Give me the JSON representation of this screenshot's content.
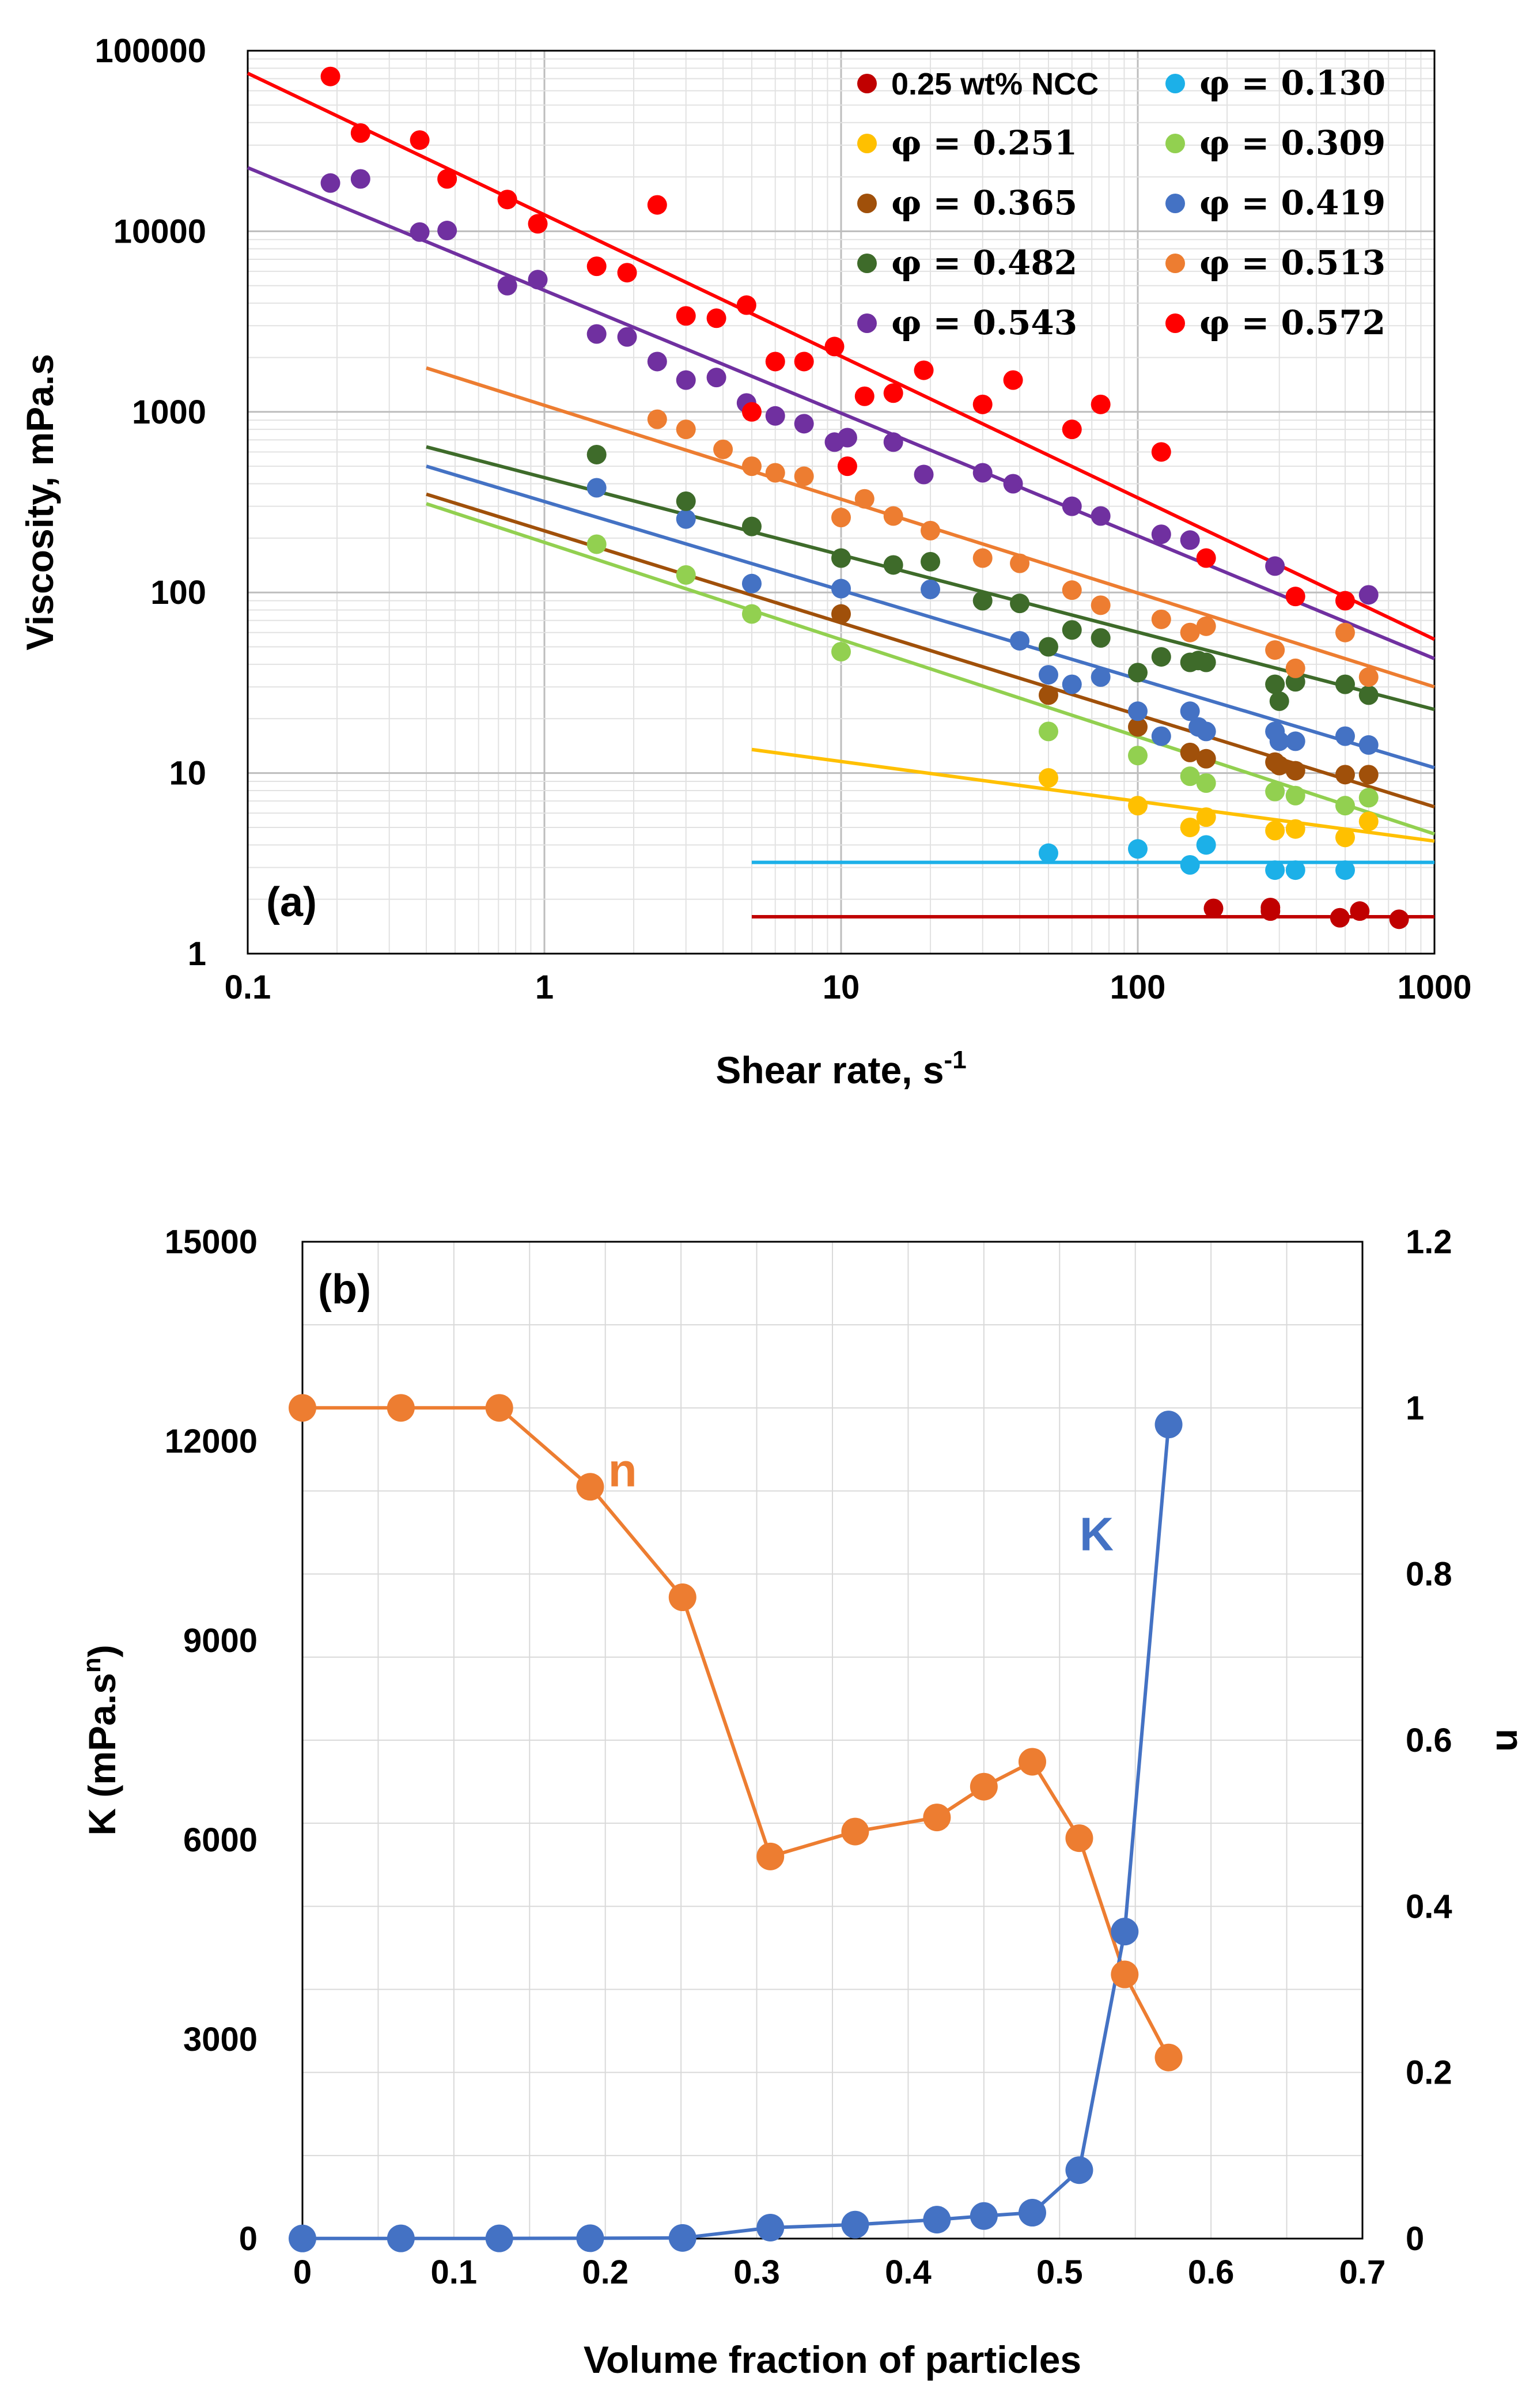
{
  "chart_data": [
    {
      "panel_label": "(a)",
      "type": "scatter",
      "xlabel": "Shear rate, s",
      "xlabel_superscript": "-1",
      "ylabel": "Viscosity, mPa.s",
      "xscale": "log",
      "yscale": "log",
      "xlim": [
        0.1,
        1000
      ],
      "ylim": [
        1,
        100000
      ],
      "grid": true,
      "legend_position": "top-right",
      "x_ticks": [
        "0.1",
        "1",
        "10",
        "100",
        "1000"
      ],
      "y_ticks": [
        "1",
        "10",
        "100",
        "1000",
        "10000",
        "100000"
      ],
      "series": [
        {
          "name": "0.25 wt% NCC",
          "color": "#C00000",
          "points": [
            [
              180,
              1.78
            ],
            [
              280,
              1.72
            ],
            [
              280,
              1.8
            ],
            [
              480,
              1.58
            ],
            [
              560,
              1.72
            ],
            [
              760,
              1.55
            ]
          ],
          "fit": [
            [
              5,
              1.6
            ],
            [
              1000,
              1.6
            ]
          ]
        },
        {
          "name": "φ = 0.130",
          "color": "#1CB0E8",
          "points": [
            [
              50,
              3.6
            ],
            [
              100,
              3.8
            ],
            [
              150,
              3.1
            ],
            [
              170,
              4.0
            ],
            [
              290,
              2.9
            ],
            [
              340,
              2.9
            ],
            [
              500,
              2.9
            ]
          ],
          "fit": [
            [
              5,
              3.2
            ],
            [
              1000,
              3.2
            ]
          ]
        },
        {
          "name": "φ = 0.251",
          "color": "#FFC000",
          "points": [
            [
              50,
              9.4
            ],
            [
              100,
              6.6
            ],
            [
              150,
              5.0
            ],
            [
              170,
              5.7
            ],
            [
              290,
              4.8
            ],
            [
              340,
              4.9
            ],
            [
              500,
              4.4
            ],
            [
              600,
              5.4
            ]
          ],
          "fit": [
            [
              5,
              13.5
            ],
            [
              1000,
              4.2
            ]
          ]
        },
        {
          "name": "φ = 0.309",
          "color": "#92D050",
          "points": [
            [
              1.5,
              185
            ],
            [
              3.0,
              125
            ],
            [
              5.0,
              76
            ],
            [
              10,
              47
            ],
            [
              50,
              17
            ],
            [
              100,
              12.5
            ],
            [
              150,
              9.6
            ],
            [
              170,
              8.8
            ],
            [
              290,
              7.9
            ],
            [
              340,
              7.5
            ],
            [
              500,
              6.6
            ],
            [
              600,
              7.3
            ]
          ],
          "fit": [
            [
              0.4,
              310
            ],
            [
              1000,
              4.6
            ]
          ]
        },
        {
          "name": "φ = 0.365",
          "color": "#A0500A",
          "points": [
            [
              10,
              76
            ],
            [
              50,
              27
            ],
            [
              100,
              18
            ],
            [
              150,
              13
            ],
            [
              170,
              12
            ],
            [
              290,
              11.5
            ],
            [
              300,
              11
            ],
            [
              340,
              10.3
            ],
            [
              500,
              9.8
            ],
            [
              600,
              9.8
            ]
          ],
          "fit": [
            [
              0.4,
              350
            ],
            [
              1000,
              6.5
            ]
          ]
        },
        {
          "name": "φ = 0.419",
          "color": "#4472C4",
          "points": [
            [
              1.5,
              380
            ],
            [
              3.0,
              255
            ],
            [
              5.0,
              112
            ],
            [
              10,
              105
            ],
            [
              20,
              104
            ],
            [
              40,
              54
            ],
            [
              50,
              35
            ],
            [
              60,
              31
            ],
            [
              75,
              34
            ],
            [
              100,
              22
            ],
            [
              120,
              16
            ],
            [
              150,
              22
            ],
            [
              160,
              18
            ],
            [
              170,
              17
            ],
            [
              290,
              17
            ],
            [
              300,
              15
            ],
            [
              340,
              15
            ],
            [
              500,
              16
            ],
            [
              600,
              14.3
            ]
          ],
          "fit": [
            [
              0.4,
              500
            ],
            [
              1000,
              10.7
            ]
          ]
        },
        {
          "name": "φ = 0.482",
          "color": "#3E6B2A",
          "points": [
            [
              1.5,
              580
            ],
            [
              3.0,
              320
            ],
            [
              5.0,
              232
            ],
            [
              10,
              155
            ],
            [
              15,
              142
            ],
            [
              20,
              148
            ],
            [
              30,
              90
            ],
            [
              40,
              87
            ],
            [
              50,
              50
            ],
            [
              60,
              62
            ],
            [
              75,
              56
            ],
            [
              100,
              36
            ],
            [
              120,
              44
            ],
            [
              150,
              41
            ],
            [
              160,
              42
            ],
            [
              170,
              41
            ],
            [
              290,
              31
            ],
            [
              300,
              25
            ],
            [
              340,
              32
            ],
            [
              500,
              31
            ],
            [
              600,
              27
            ]
          ],
          "fit": [
            [
              0.4,
              640
            ],
            [
              1000,
              22.5
            ]
          ]
        },
        {
          "name": "φ = 0.513",
          "color": "#ED7D31",
          "points": [
            [
              2.4,
              910
            ],
            [
              3.0,
              800
            ],
            [
              4.0,
              620
            ],
            [
              5.0,
              500
            ],
            [
              6.0,
              460
            ],
            [
              7.5,
              440
            ],
            [
              10,
              260
            ],
            [
              12,
              330
            ],
            [
              15,
              265
            ],
            [
              20,
              220
            ],
            [
              30,
              155
            ],
            [
              40,
              145
            ],
            [
              60,
              103
            ],
            [
              75,
              85
            ],
            [
              120,
              71
            ],
            [
              150,
              60
            ],
            [
              170,
              65
            ],
            [
              290,
              48
            ],
            [
              340,
              38
            ],
            [
              500,
              60
            ],
            [
              600,
              34
            ]
          ],
          "fit": [
            [
              0.4,
              1750
            ],
            [
              1000,
              30
            ]
          ]
        },
        {
          "name": "φ = 0.543",
          "color": "#7030A0",
          "points": [
            [
              0.19,
              18500
            ],
            [
              0.24,
              19500
            ],
            [
              0.38,
              9900
            ],
            [
              0.47,
              10100
            ],
            [
              0.75,
              5000
            ],
            [
              0.95,
              5400
            ],
            [
              1.5,
              2700
            ],
            [
              1.9,
              2600
            ],
            [
              2.4,
              1900
            ],
            [
              3.0,
              1500
            ],
            [
              3.8,
              1550
            ],
            [
              4.8,
              1120
            ],
            [
              6.0,
              950
            ],
            [
              7.5,
              860
            ],
            [
              9.5,
              680
            ],
            [
              10.5,
              720
            ],
            [
              15,
              680
            ],
            [
              19,
              450
            ],
            [
              30,
              460
            ],
            [
              38,
              400
            ],
            [
              60,
              300
            ],
            [
              75,
              265
            ],
            [
              120,
              210
            ],
            [
              150,
              195
            ],
            [
              290,
              140
            ],
            [
              600,
              97
            ]
          ],
          "fit": [
            [
              0.1,
              22500
            ],
            [
              1000,
              43
            ]
          ]
        },
        {
          "name": "φ = 0.572",
          "color": "#FF0000",
          "points": [
            [
              0.19,
              72000
            ],
            [
              0.24,
              35000
            ],
            [
              0.38,
              32000
            ],
            [
              0.47,
              19500
            ],
            [
              0.75,
              15000
            ],
            [
              0.95,
              11000
            ],
            [
              1.5,
              6400
            ],
            [
              1.9,
              5900
            ],
            [
              2.4,
              14000
            ],
            [
              3.0,
              3400
            ],
            [
              3.8,
              3300
            ],
            [
              4.8,
              3900
            ],
            [
              5.0,
              1000
            ],
            [
              6.0,
              1900
            ],
            [
              7.5,
              1900
            ],
            [
              9.5,
              2300
            ],
            [
              10.5,
              500
            ],
            [
              12,
              1220
            ],
            [
              15,
              1270
            ],
            [
              19,
              1700
            ],
            [
              30,
              1100
            ],
            [
              38,
              1500
            ],
            [
              60,
              800
            ],
            [
              75,
              1100
            ],
            [
              120,
              600
            ],
            [
              170,
              155
            ],
            [
              340,
              95
            ],
            [
              500,
              90
            ]
          ],
          "fit": [
            [
              0.1,
              75000
            ],
            [
              1000,
              55
            ]
          ]
        }
      ]
    },
    {
      "panel_label": "(b)",
      "type": "line",
      "xlabel": "Volume fraction of particles",
      "ylabel_left": "K (mPa.s",
      "ylabel_left_superscript": "n",
      "ylabel_left_close": ")",
      "ylabel_right": "n",
      "xlim": [
        0,
        0.7
      ],
      "ylim_left": [
        0,
        15000
      ],
      "ylim_right": [
        0,
        1.2
      ],
      "grid": true,
      "x_ticks": [
        "0",
        "0.1",
        "0.2",
        "0.3",
        "0.4",
        "0.5",
        "0.6",
        "0.7"
      ],
      "y_left_ticks": [
        "0",
        "3000",
        "6000",
        "9000",
        "12000",
        "15000"
      ],
      "y_right_ticks": [
        "0",
        "0.2",
        "0.4",
        "0.6",
        "0.8",
        "1",
        "1.2"
      ],
      "series": [
        {
          "name": "n",
          "axis": "right",
          "color": "#ED7D31",
          "x": [
            0,
            0.065,
            0.13,
            0.19,
            0.251,
            0.309,
            0.365,
            0.419,
            0.45,
            0.482,
            0.513,
            0.543,
            0.572
          ],
          "y": [
            1.0,
            1.0,
            1.0,
            0.905,
            0.772,
            0.46,
            0.49,
            0.507,
            0.544,
            0.574,
            0.482,
            0.318,
            0.218
          ]
        },
        {
          "name": "K",
          "axis": "left",
          "color": "#4472C4",
          "x": [
            0,
            0.065,
            0.13,
            0.19,
            0.251,
            0.309,
            0.365,
            0.419,
            0.45,
            0.482,
            0.513,
            0.543,
            0.572
          ],
          "y": [
            2,
            3,
            3,
            5,
            10,
            165,
            210,
            285,
            340,
            390,
            1030,
            4620,
            12250
          ]
        }
      ],
      "series_labels": [
        {
          "text": "n",
          "color": "#ED7D31",
          "x": 0.2,
          "y": 0.925,
          "axis": "right"
        },
        {
          "text": "K",
          "color": "#4472C4",
          "x": 0.513,
          "y": 10600,
          "axis": "left"
        }
      ]
    }
  ]
}
